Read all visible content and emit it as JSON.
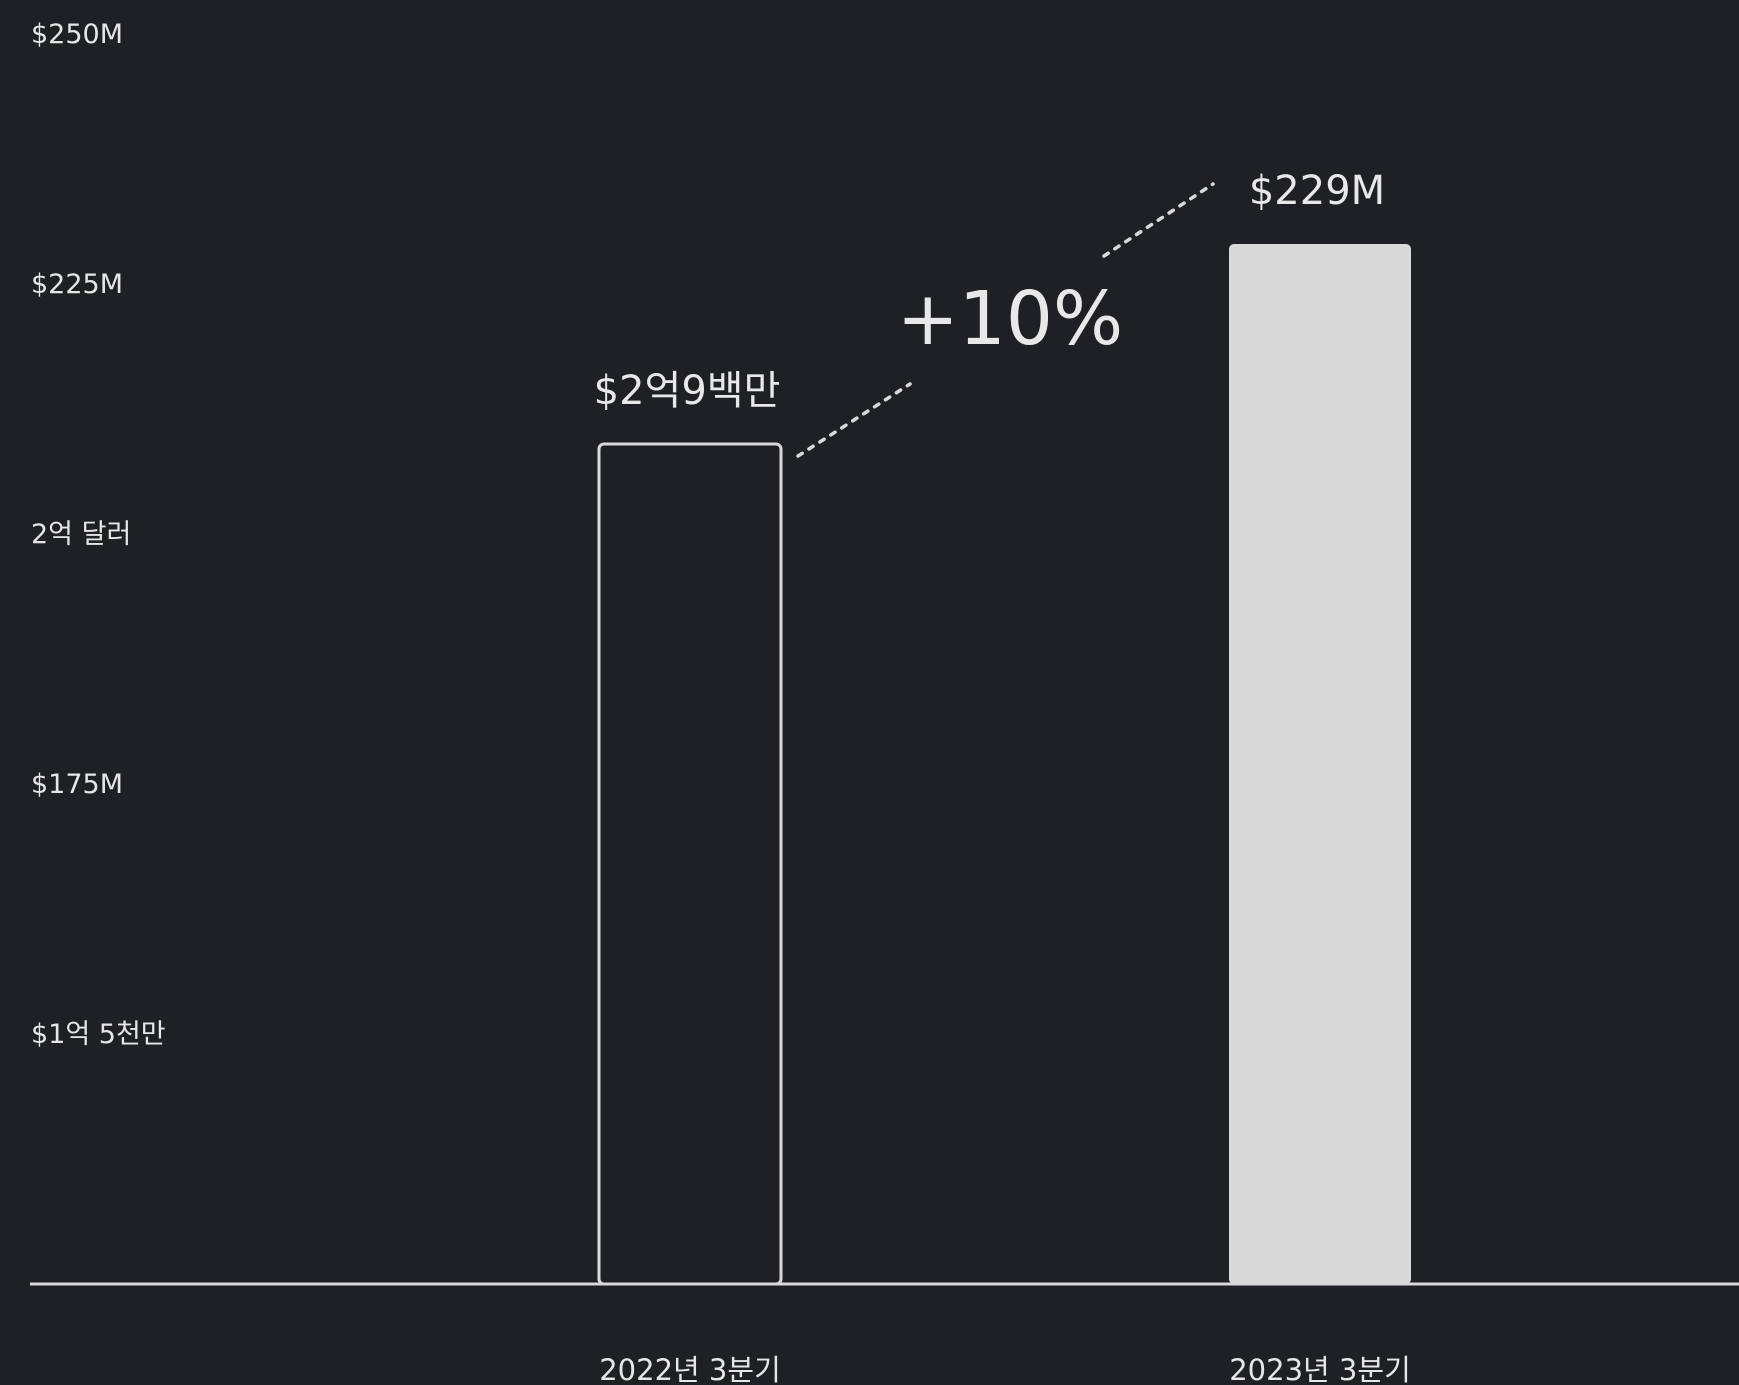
{
  "chart_data": {
    "type": "bar",
    "categories": [
      "2022년 3분기",
      "2023년 3분기"
    ],
    "values": [
      209,
      229
    ],
    "data_labels": [
      "$2억9백만",
      "$229M"
    ],
    "y_ticks": [
      {
        "value": 250,
        "label": "$250M"
      },
      {
        "value": 225,
        "label": "$225M"
      },
      {
        "value": 200,
        "label": "2억 달러"
      },
      {
        "value": 175,
        "label": "$175M"
      },
      {
        "value": 150,
        "label": "$1억 5천만"
      }
    ],
    "ylim": [
      125,
      250
    ],
    "change_label": "+10%",
    "grid": false,
    "colors": {
      "background": "#1e2023",
      "bar_outline": "#d9d9d9",
      "bar_fill": "#d9d9d9",
      "text": "#e6e6e6"
    }
  }
}
